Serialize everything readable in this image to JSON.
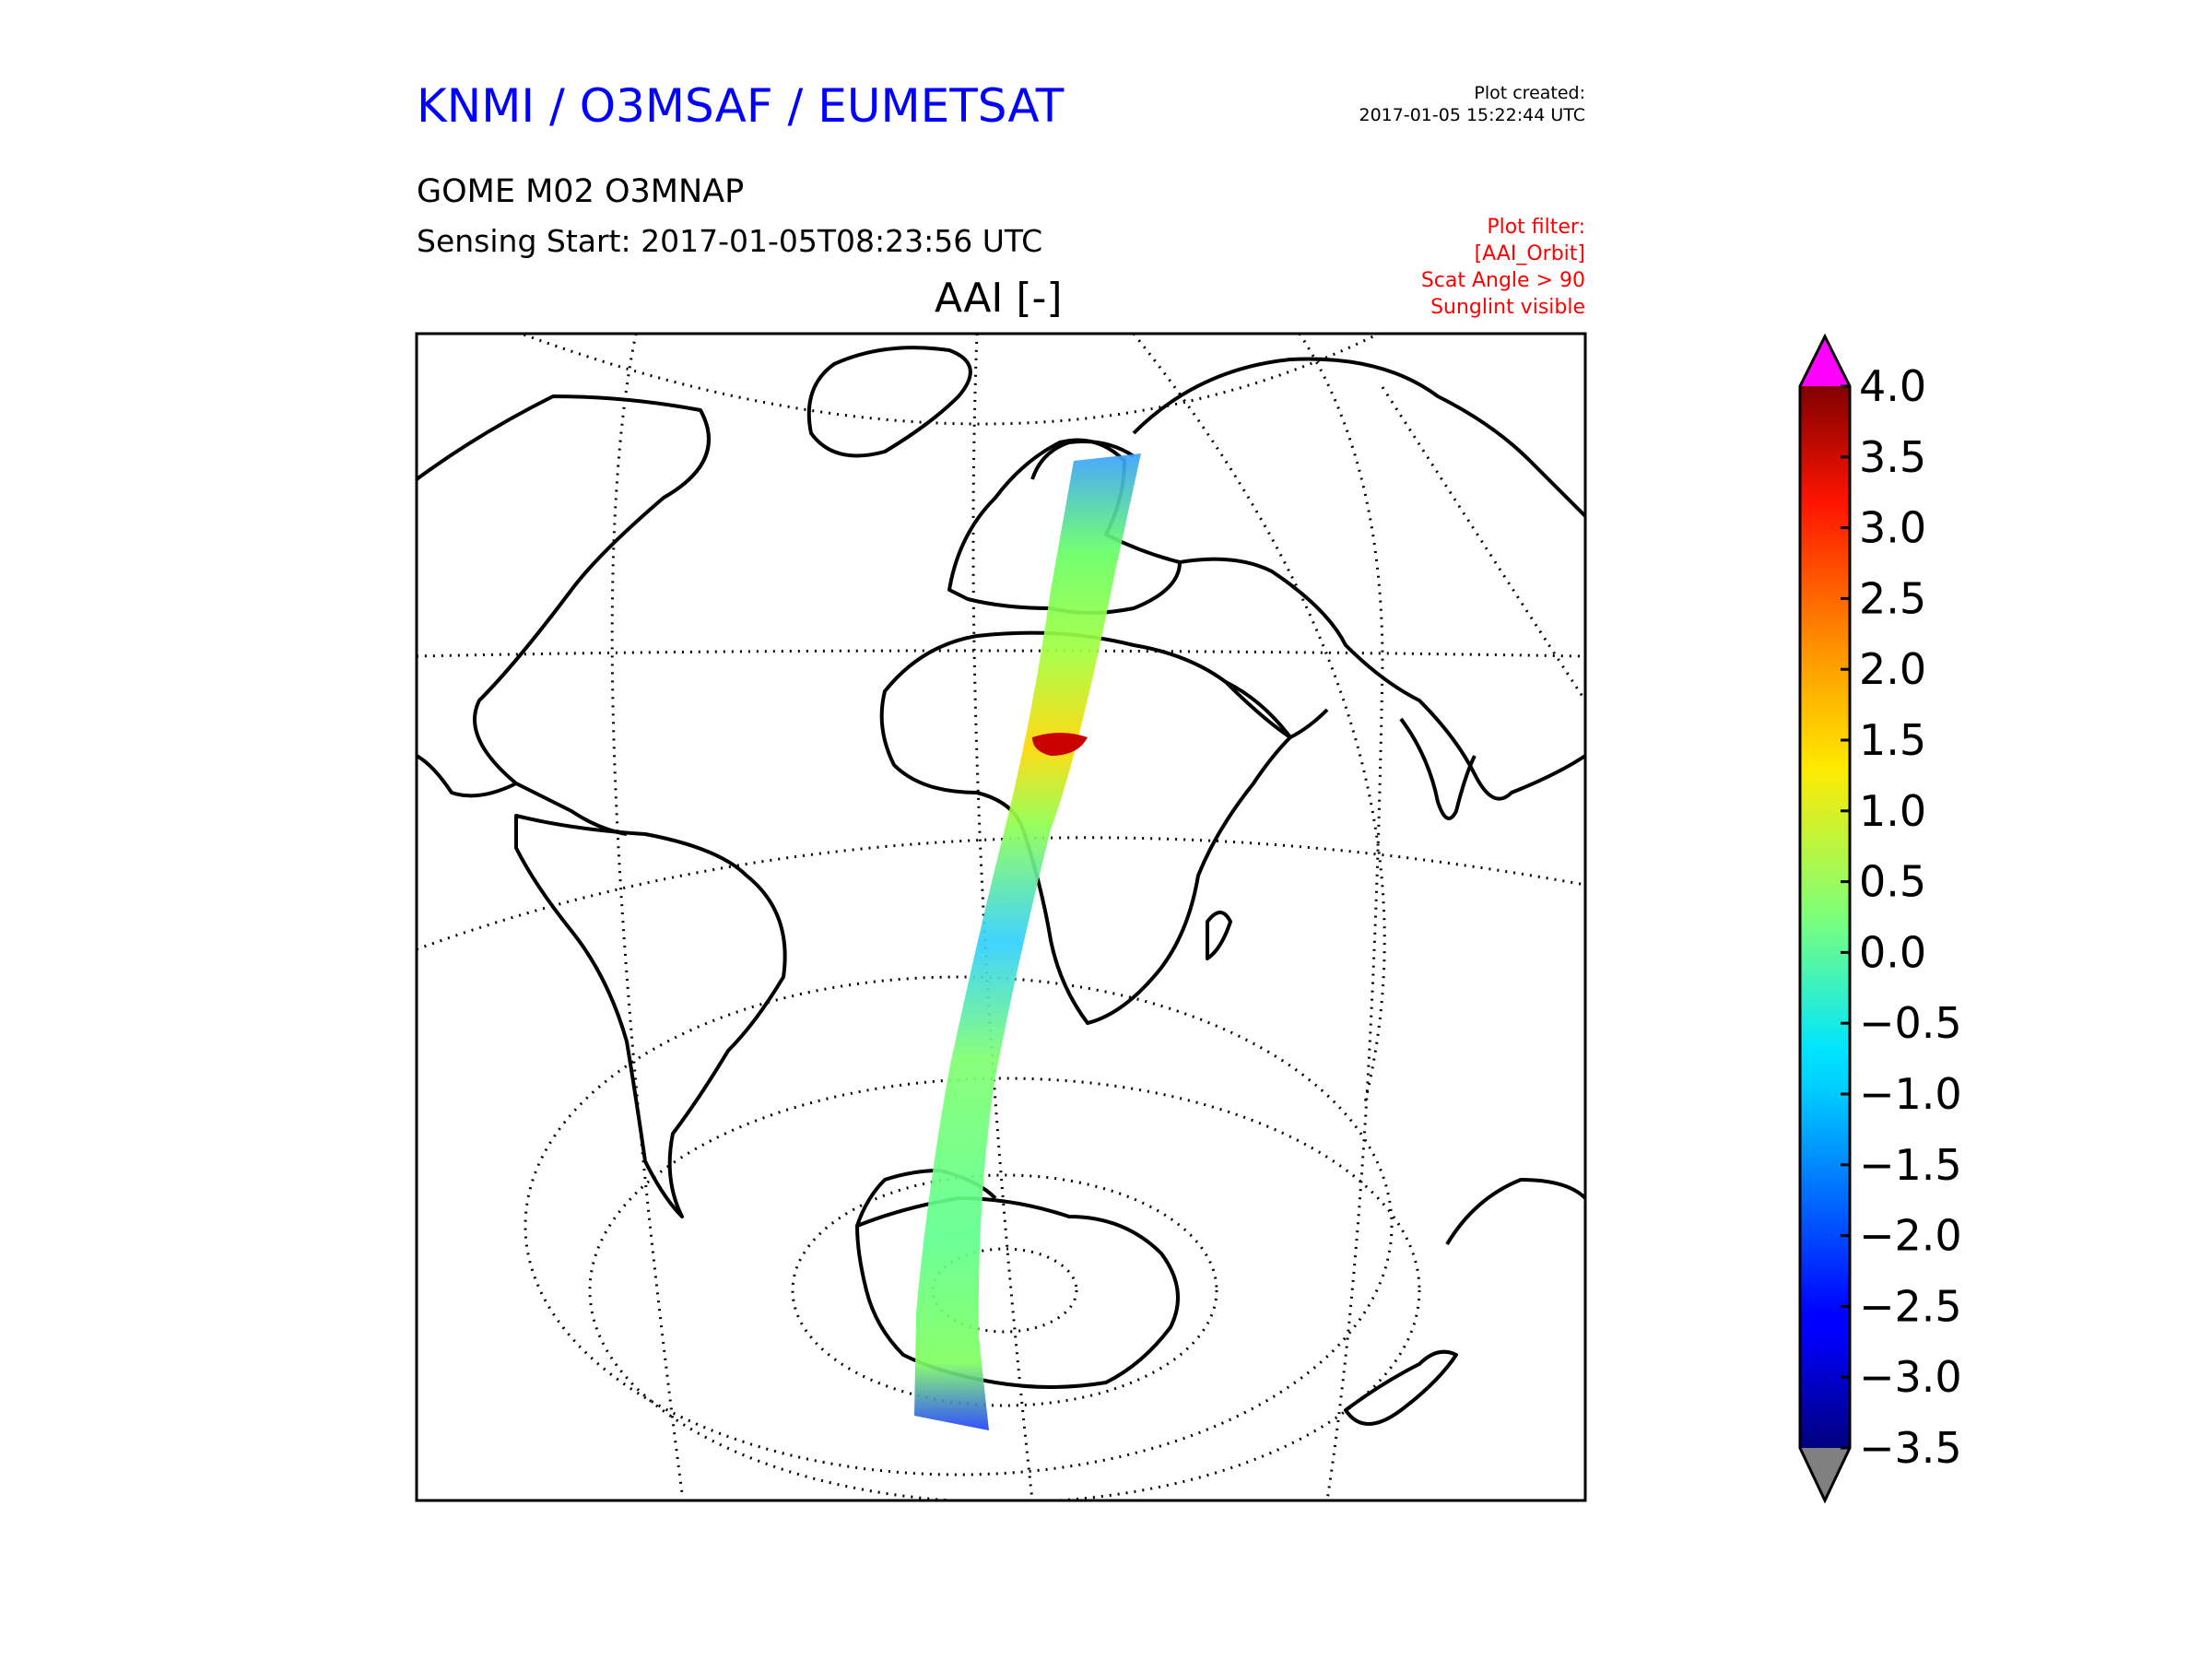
{
  "header": {
    "org": "KNMI / O3MSAF / EUMETSAT",
    "created_label": "Plot created:",
    "created_time": "2017-01-05 15:22:44 UTC",
    "product": "GOME M02 O3MNAP",
    "sensing": "Sensing Start: 2017-01-05T08:23:56 UTC",
    "title": "AAI [-]"
  },
  "filter": [
    "Plot filter:",
    "[AAI_Orbit]",
    "Scat Angle > 90",
    "Sunglint visible"
  ],
  "colorbar": {
    "ticks": [
      "4.0",
      "3.5",
      "3.0",
      "2.5",
      "2.0",
      "1.5",
      "1.0",
      "0.5",
      "0.0",
      "−0.5",
      "−1.0",
      "−1.5",
      "−2.0",
      "−2.5",
      "−3.0",
      "−3.5"
    ],
    "min": -3.5,
    "max": 4.0,
    "colormap": "jet",
    "over_color": "#ff00ff",
    "under_color": "#808080"
  },
  "colors": {
    "title": "#0000ff",
    "filter": "#ff0000",
    "coastline": "#000000"
  }
}
